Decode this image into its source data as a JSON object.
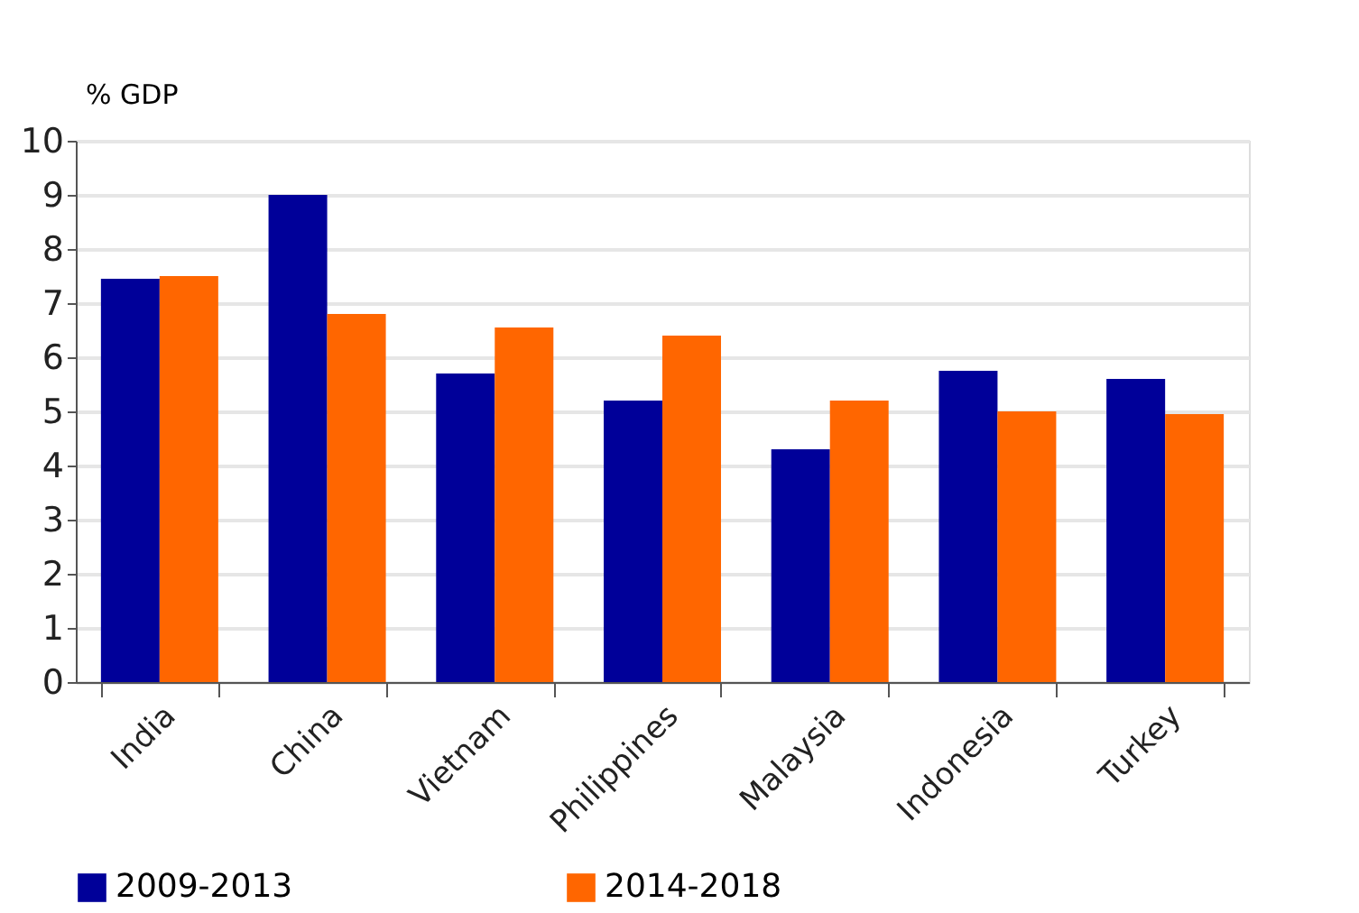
{
  "chart_data": {
    "type": "bar",
    "ylabel": "% GDP",
    "categories": [
      "India",
      "China",
      "Vietnam",
      "Philippines",
      "Malaysia",
      "Indonesia",
      "Turkey"
    ],
    "series": [
      {
        "name": "2009-2013",
        "color": "#000099",
        "values": [
          7.45,
          9.0,
          5.7,
          5.2,
          4.3,
          5.75,
          5.6
        ]
      },
      {
        "name": "2014-2018",
        "color": "#ff6600",
        "values": [
          7.5,
          6.8,
          6.55,
          6.4,
          5.2,
          5.0,
          4.95
        ]
      }
    ],
    "ylim": [
      0,
      10
    ],
    "yticks": [
      0,
      1,
      2,
      3,
      4,
      5,
      6,
      7,
      8,
      9,
      10
    ],
    "grid": "y",
    "legend": "bottom"
  }
}
